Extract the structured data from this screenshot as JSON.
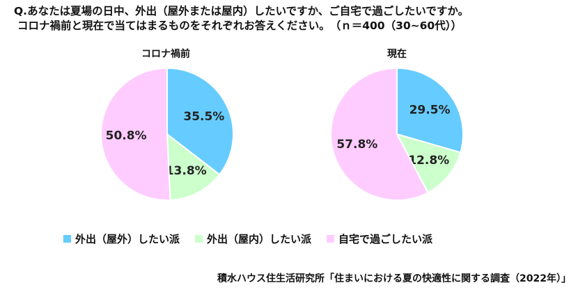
{
  "header": {
    "line1": "Q.あなたは夏場の日中、外出（屋外または屋内）したいですか、ご自宅で過ごしたいですか。",
    "line2": "コロナ禍前と現在で当てはまるものをそれぞれお答えください。　（ｎ＝400（30~60代））"
  },
  "colors": {
    "outdoor": "#66CCFF",
    "indoor": "#CCFFCC",
    "home": "#FFCCFF"
  },
  "legend": [
    {
      "label": "外出（屋外）したい派",
      "color": "#66CCFF"
    },
    {
      "label": "外出（屋内）したい派",
      "color": "#CCFFCC"
    },
    {
      "label": "自宅で過ごしたい派",
      "color": "#FFCCFF"
    }
  ],
  "chart_data": [
    {
      "type": "pie",
      "title": "コロナ禍前",
      "categories": [
        "外出（屋外）したい派",
        "外出（屋内）したい派",
        "自宅で過ごしたい派"
      ],
      "values": [
        35.5,
        13.8,
        50.8
      ],
      "labels": [
        "35.5%",
        "13.8%",
        "50.8%"
      ]
    },
    {
      "type": "pie",
      "title": "現在",
      "categories": [
        "外出（屋外）したい派",
        "外出（屋内）したい派",
        "自宅で過ごしたい派"
      ],
      "values": [
        29.5,
        12.8,
        57.8
      ],
      "labels": [
        "29.5%",
        "12.8%",
        "57.8%"
      ]
    }
  ],
  "source": "積水ハウス住生活研究所「住まいにおける夏の快適性に関する調査（2022年）」"
}
